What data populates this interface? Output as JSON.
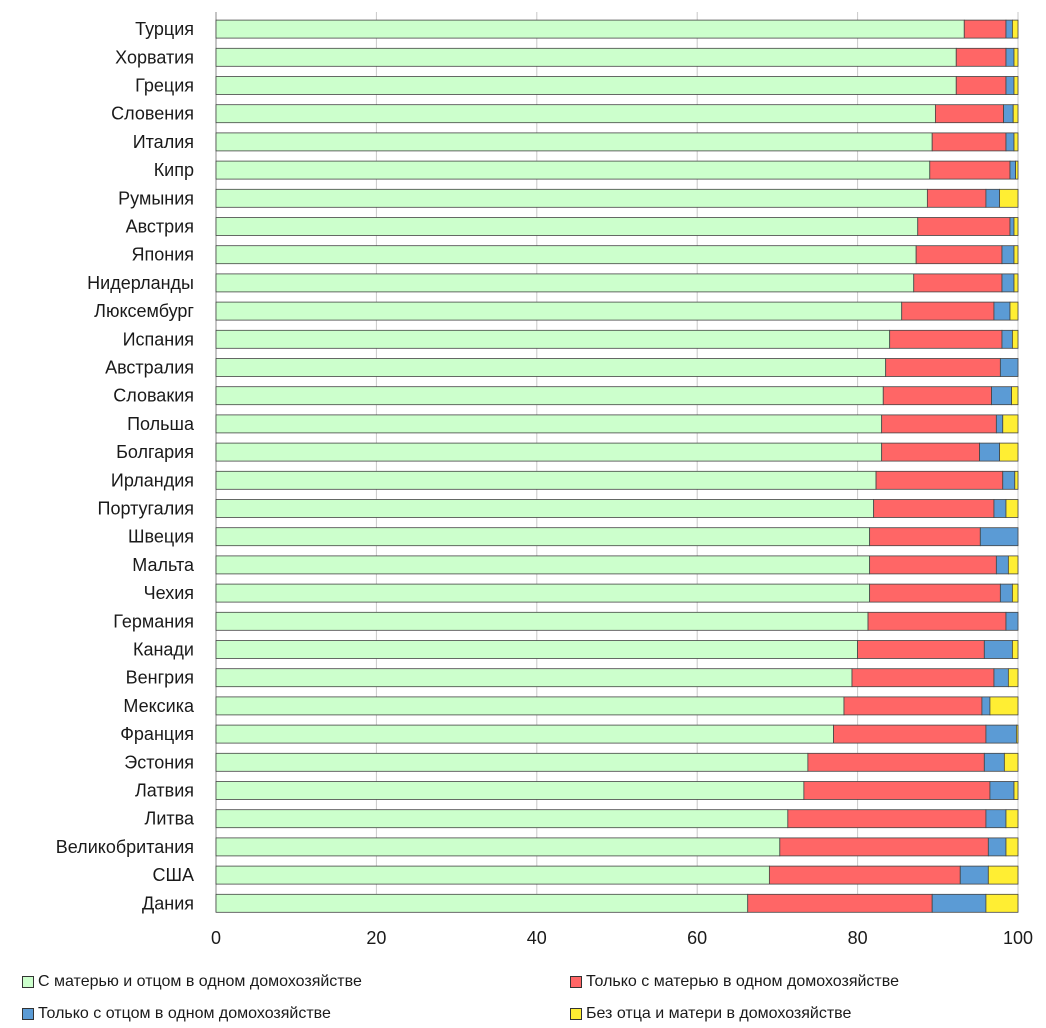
{
  "chart_data": {
    "type": "bar",
    "orientation": "horizontal",
    "stacked": true,
    "categories": [
      "Турция",
      "Хорватия",
      "Греция",
      "Словения",
      "Италия",
      "Кипр",
      "Румыния",
      "Австрия",
      "Япония",
      "Нидерланды",
      "Люксембург",
      "Испания",
      "Австралия",
      "Словакия",
      "Польша",
      "Болгария",
      "Ирландия",
      "Португалия",
      "Швеция",
      "Мальта",
      "Чехия",
      "Германия",
      "Канади",
      "Венгрия",
      "Мексика",
      "Франция",
      "Эстония",
      "Латвия",
      "Литва",
      "Великобритания",
      "США",
      "Дания"
    ],
    "series": [
      {
        "name": "С матерью и отцом в одном домохозяйстве",
        "color": "#ccffcc",
        "values": [
          93.3,
          92.3,
          92.3,
          89.7,
          89.3,
          89.0,
          88.7,
          87.5,
          87.3,
          87.0,
          85.5,
          84.0,
          83.5,
          83.2,
          83.0,
          83.0,
          82.3,
          82.0,
          81.5,
          81.5,
          81.5,
          81.3,
          80.0,
          79.3,
          78.3,
          77.0,
          73.8,
          73.3,
          71.3,
          70.3,
          69.0,
          66.3
        ]
      },
      {
        "name": "Только с матерью в одном домохозяйстве",
        "color": "#ff6666",
        "values": [
          5.2,
          6.2,
          6.2,
          8.5,
          9.2,
          10.0,
          7.3,
          11.5,
          10.7,
          11.0,
          11.5,
          14.0,
          14.3,
          13.5,
          14.3,
          12.2,
          15.8,
          15.0,
          13.8,
          15.8,
          16.3,
          17.2,
          15.8,
          17.7,
          17.2,
          19.0,
          22.0,
          23.2,
          24.7,
          26.0,
          23.8,
          23.0
        ]
      },
      {
        "name": "Только с отцом в одном домохозяйстве",
        "color": "#5b9bd5",
        "values": [
          0.8,
          1.0,
          1.0,
          1.2,
          1.0,
          0.7,
          1.7,
          0.5,
          1.5,
          1.5,
          2.0,
          1.3,
          2.2,
          2.5,
          0.8,
          2.5,
          1.5,
          1.5,
          4.7,
          1.5,
          1.5,
          1.5,
          3.5,
          1.8,
          1.0,
          3.8,
          2.5,
          3.0,
          2.5,
          2.2,
          3.5,
          6.7
        ]
      },
      {
        "name": "Без отца и матери в домохозяйстве",
        "color": "#ffee33",
        "values": [
          0.7,
          0.5,
          0.5,
          0.6,
          0.5,
          0.3,
          2.3,
          0.5,
          0.5,
          0.5,
          1.0,
          0.7,
          0.0,
          0.8,
          1.9,
          2.3,
          0.4,
          1.5,
          0.0,
          1.2,
          0.7,
          0.0,
          0.7,
          1.2,
          3.5,
          0.2,
          1.7,
          0.5,
          1.5,
          1.5,
          3.7,
          4.0
        ]
      }
    ],
    "xlim": [
      0,
      100
    ],
    "xticks": [
      0,
      20,
      40,
      60,
      80,
      100
    ],
    "xunit": "%",
    "grid": true,
    "legend_position": "bottom"
  }
}
